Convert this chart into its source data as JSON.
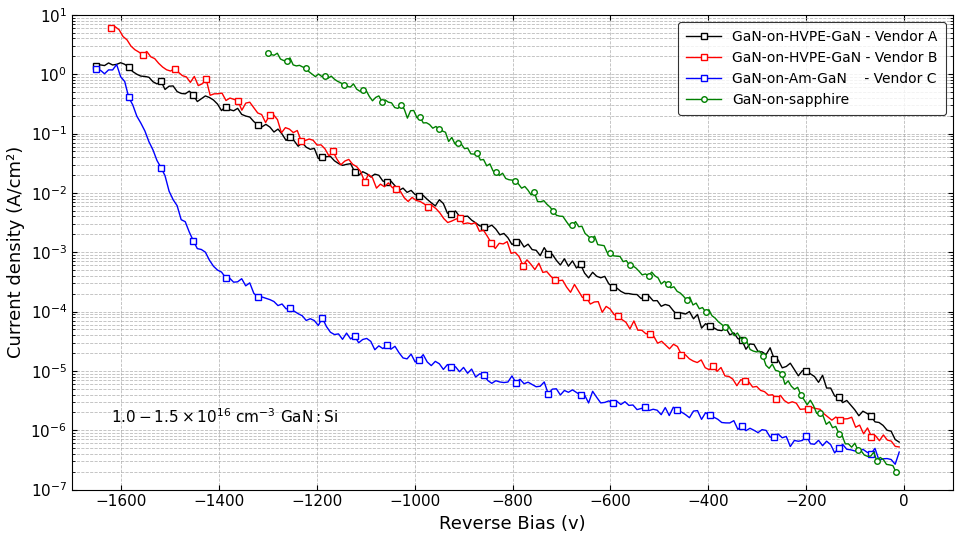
{
  "title": "",
  "xlabel": "Reverse Bias (v)",
  "ylabel": "Current density (A/cm²)",
  "xlim": [
    -1700,
    100
  ],
  "ylim_log": [
    -7,
    1
  ],
  "xticks": [
    -1600,
    -1400,
    -1200,
    -1000,
    -800,
    -600,
    -400,
    -200,
    0
  ],
  "annotation": "1.0 – 1.5 × 10",
  "annotation_exp": "16",
  "annotation_suffix": " cm⁻³ GaN:Si",
  "legend_labels": [
    "GaN-on-HVPE-GaN - Vendor A",
    "GaN-on-HVPE-GaN - Vendor B",
    "GaN-on-Am-GaN    - Vendor C",
    "GaN-on-sapphire"
  ],
  "colors": [
    "#000000",
    "#ff0000",
    "#0000ff",
    "#008000"
  ],
  "background_color": "#ffffff",
  "grid_color": "#aaaaaa"
}
